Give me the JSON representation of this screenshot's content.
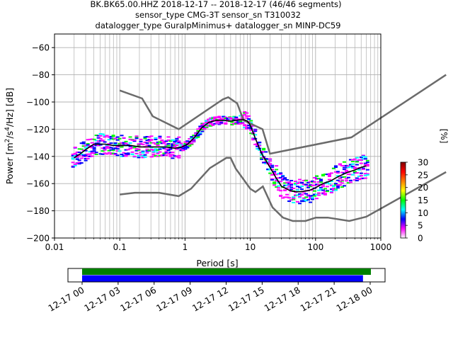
{
  "figure": {
    "title_lines": [
      "BK.BK65.00.HHZ   2018-12-17 -- 2018-12-17  (46/46 segments)",
      "sensor_type CMG-3T sensor_sn T310032",
      "datalogger_type GuralpMinimus+ datalogger_sn MINP-DC59"
    ]
  },
  "chart_data": [
    {
      "type": "heatmap",
      "title": "",
      "xlabel": "Period [s]",
      "ylabel": "Power [m²/s⁴/Hz] [dB]",
      "ylabel_parts": {
        "main": "Power [m",
        "sup1": "2",
        "mid": "/s",
        "sup2": "4",
        "tail": "/Hz] [dB]"
      },
      "xscale": "log",
      "xlim": [
        0.01,
        1000
      ],
      "ylim": [
        -200,
        -50
      ],
      "grid": true,
      "x_tick_labels": [
        "0.01",
        "0.1",
        "1",
        "10",
        "100",
        "1000"
      ],
      "x_ticks": [
        0.01,
        0.1,
        1,
        10,
        100,
        1000
      ],
      "y_ticks": [
        -200,
        -180,
        -160,
        -140,
        -120,
        -100,
        -80,
        -60
      ],
      "y_tick_labels": [
        "−200",
        "−180",
        "−160",
        "−140",
        "−120",
        "−100",
        "−80",
        "−60"
      ],
      "noise_model_high": {
        "color": "#6b6b6b",
        "x": [
          0.1,
          0.22,
          0.32,
          0.8,
          3.8,
          4.6,
          6.3,
          7.9,
          15.4,
          20,
          354.8,
          10000
        ],
        "y": [
          -91.5,
          -97.4,
          -110.5,
          -120,
          -98,
          -96.5,
          -101,
          -113.5,
          -120,
          -138,
          -126,
          -80
        ]
      },
      "noise_model_low": {
        "color": "#6b6b6b",
        "x": [
          0.1,
          0.17,
          0.4,
          0.8,
          1.24,
          2.4,
          4.3,
          5,
          6,
          10,
          12,
          15.6,
          21.9,
          31.6,
          45,
          70,
          101,
          154,
          328,
          600,
          10000
        ],
        "y": [
          -168,
          -166.7,
          -166.7,
          -169.2,
          -163.7,
          -148.6,
          -141.1,
          -141.1,
          -149,
          -163.8,
          -166.2,
          -162.1,
          -177.5,
          -185,
          -187.5,
          -187.5,
          -185,
          -185,
          -187.5,
          -184.4,
          -151.5
        ]
      },
      "median_curve": {
        "color": "#000000",
        "x": [
          0.02,
          0.025,
          0.03,
          0.04,
          0.06,
          0.08,
          0.1,
          0.15,
          0.2,
          0.3,
          0.5,
          0.7,
          0.9,
          1.1,
          1.4,
          1.8,
          2.3,
          3,
          4,
          5,
          6,
          7,
          8,
          9,
          10,
          12,
          15,
          20,
          25,
          30,
          40,
          50,
          60,
          80,
          100,
          130,
          170,
          220,
          300,
          400,
          500,
          600
        ],
        "y": [
          -141,
          -138,
          -135,
          -131,
          -131,
          -132,
          -132,
          -132,
          -133,
          -133,
          -133,
          -134,
          -133,
          -131,
          -126,
          -119,
          -115,
          -113.5,
          -113.5,
          -114,
          -113.5,
          -113,
          -113,
          -114,
          -117,
          -127,
          -138,
          -148,
          -156,
          -162,
          -165,
          -166,
          -166,
          -165,
          -163,
          -160,
          -158,
          -155,
          -152,
          -150,
          -148,
          -147
        ]
      },
      "colorbar": {
        "label": "[%]",
        "range": [
          0,
          30
        ],
        "ticks": [
          0,
          5,
          10,
          15,
          20,
          25,
          30
        ],
        "tick_labels": [
          "0",
          "5",
          "10",
          "15",
          "20",
          "25",
          "30"
        ],
        "colormap": [
          "#ffffff",
          "#ff00ff",
          "#0000ff",
          "#00ffff",
          "#00ff00",
          "#ffff00",
          "#ff8000",
          "#ff0000",
          "#800000"
        ]
      }
    },
    {
      "type": "bar",
      "title": "",
      "xlabel": "",
      "time_range": [
        "2018-12-17 00:00",
        "2018-12-18 03:00"
      ],
      "x_tick_labels": [
        "12-17 00",
        "12-17 03",
        "12-17 06",
        "12-17 09",
        "12-17 12",
        "12-17 15",
        "12-17 18",
        "12-17 21",
        "12-18 00"
      ],
      "series": [
        {
          "color": "#008000",
          "start_hour": 0,
          "end_hour": 24.5
        },
        {
          "color": "#0000ff",
          "start_hour": 0,
          "end_hour": 23.4
        }
      ]
    }
  ]
}
